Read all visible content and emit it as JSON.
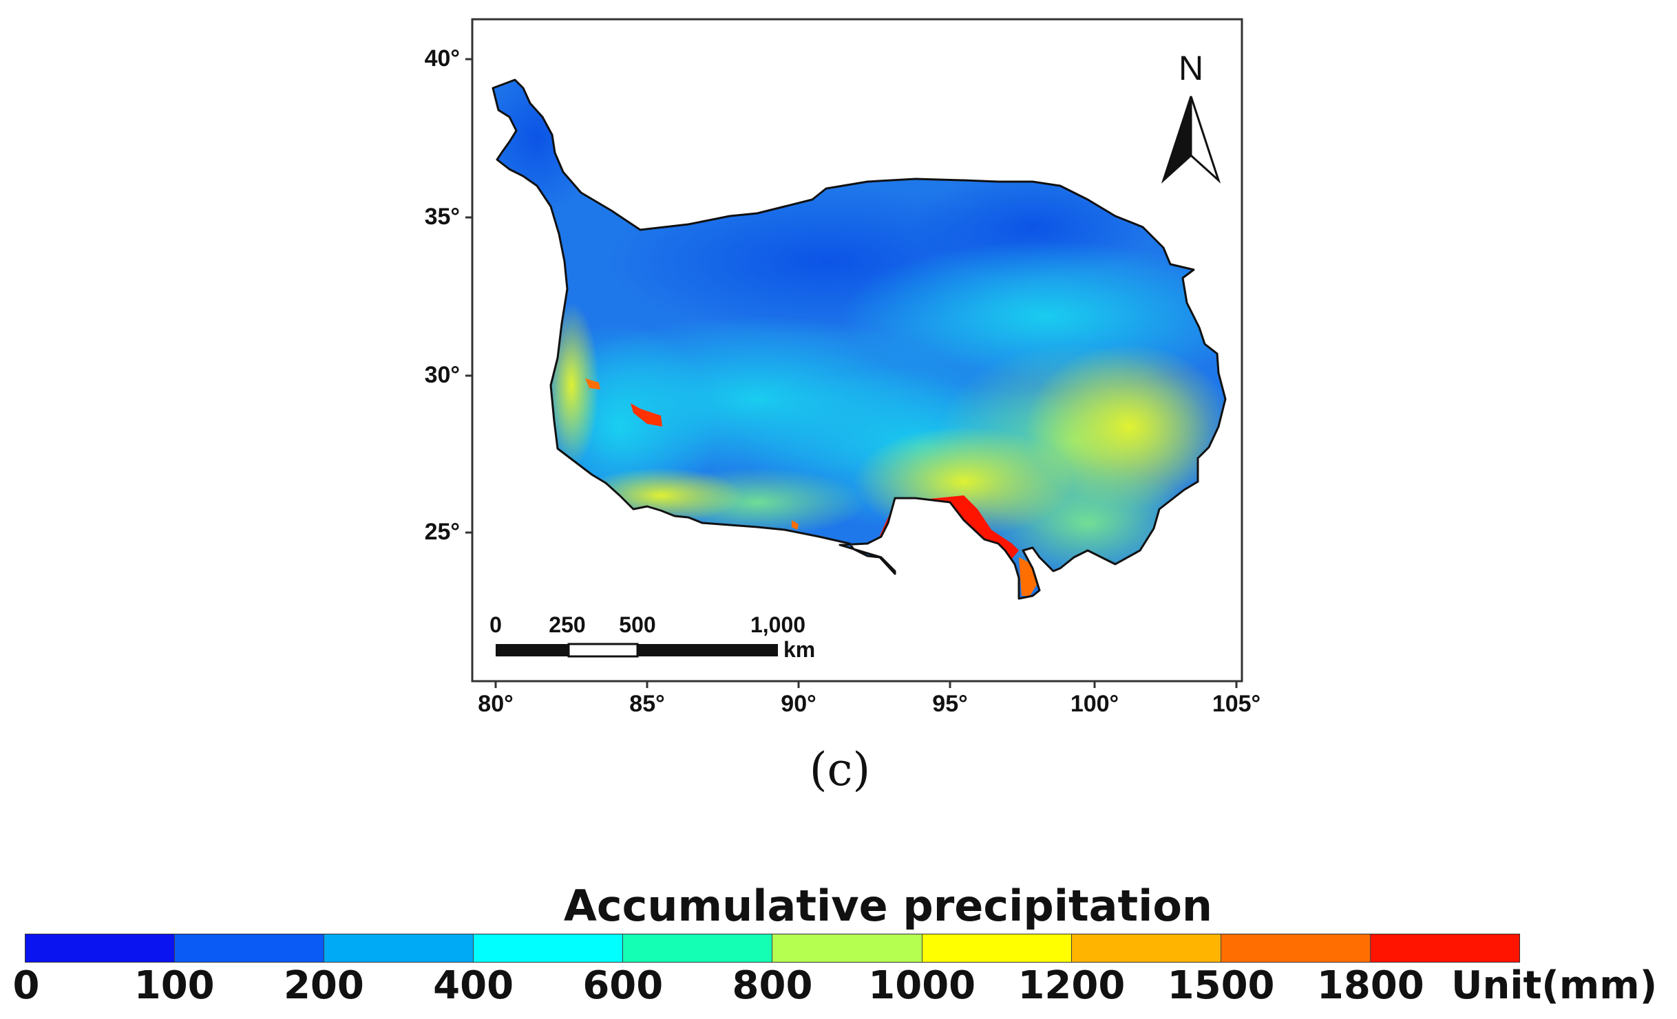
{
  "map": {
    "y_ticks": [
      "40°",
      "35°",
      "30°",
      "25°"
    ],
    "x_ticks": [
      "80°",
      "85°",
      "90°",
      "95°",
      "100°",
      "105°"
    ],
    "north_label": "N",
    "scale_bar": {
      "labels": [
        "0",
        "250",
        "500",
        "1,000"
      ],
      "unit": "km"
    },
    "panel_label": "(c)"
  },
  "legend": {
    "title": "Accumulative precipitation",
    "unit": "Unit(mm)",
    "ticks": [
      "0",
      "100",
      "200",
      "400",
      "600",
      "800",
      "1000",
      "1200",
      "1500",
      "1800"
    ],
    "colors": [
      "#0a14f0",
      "#0a5af5",
      "#00aaf5",
      "#00ffff",
      "#14ffb4",
      "#b4ff50",
      "#ffff00",
      "#ffb400",
      "#ff6e00",
      "#ff1400"
    ]
  }
}
